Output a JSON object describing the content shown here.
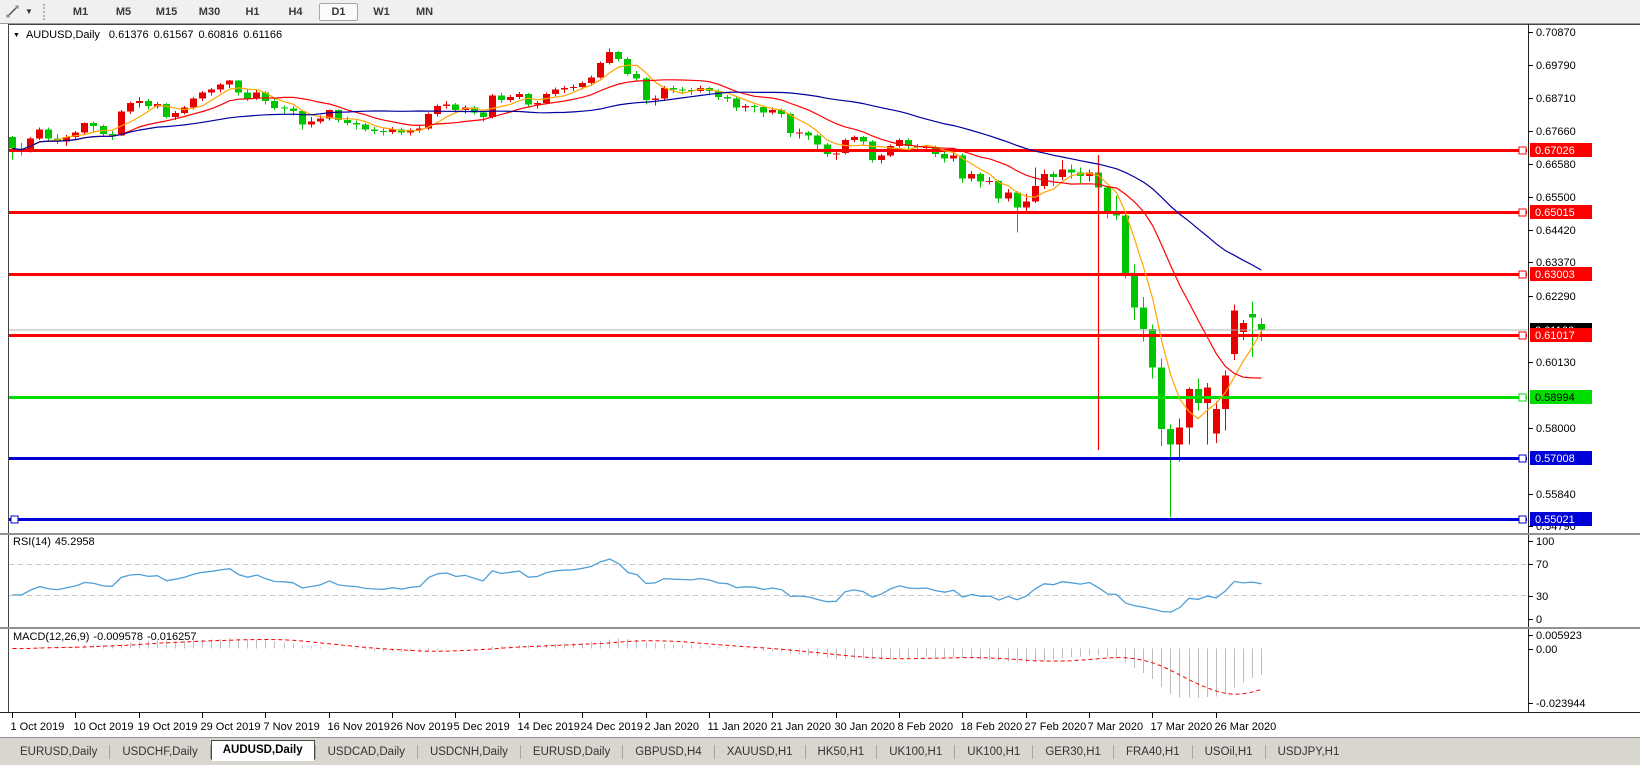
{
  "toolbar": {
    "timeframes": [
      "M1",
      "M5",
      "M15",
      "M30",
      "H1",
      "H4",
      "D1",
      "W1",
      "MN"
    ],
    "active_timeframe": "D1"
  },
  "chart": {
    "title": {
      "symbol": "AUDUSD,Daily",
      "open": "0.61376",
      "high": "0.61567",
      "low": "0.60816",
      "close": "0.61166"
    },
    "price_axis": {
      "labels": [
        "0.70870",
        "0.69790",
        "0.68710",
        "0.67660",
        "0.66580",
        "0.65500",
        "0.64420",
        "0.63370",
        "0.62290",
        "0.60130",
        "0.58000",
        "0.55840",
        "0.54790"
      ]
    },
    "hlines": [
      {
        "price": 0.67026,
        "label": "0.67026",
        "color": "#ff0000",
        "text_color": "#ffffff"
      },
      {
        "price": 0.65015,
        "label": "0.65015",
        "color": "#ff0000",
        "text_color": "#ffffff"
      },
      {
        "price": 0.63003,
        "label": "0.63003",
        "color": "#ff0000",
        "text_color": "#ffffff"
      },
      {
        "price": 0.61017,
        "label": "0.61017",
        "color": "#ff0000",
        "text_color": "#ffffff"
      },
      {
        "price": 0.58994,
        "label": "0.58994",
        "color": "#00dd00",
        "text_color": "#000000"
      },
      {
        "price": 0.57008,
        "label": "0.57008",
        "color": "#0000d8",
        "text_color": "#ffffff"
      },
      {
        "price": 0.55021,
        "label": "0.55021",
        "color": "#0000d8",
        "text_color": "#ffffff",
        "left_handle": true
      }
    ],
    "current_price": {
      "value": 0.61166,
      "label": "0.61166",
      "line_color": "#b0b0b0",
      "label_bg": "#000000",
      "text_color": "#ffffff"
    }
  },
  "chart_data": {
    "type": "candlestick",
    "symbol": "AUDUSD",
    "timeframe": "Daily",
    "title": "AUDUSD,Daily",
    "ylim": [
      0.546042,
      0.710908
    ],
    "last_ohlc": {
      "open": 0.61376,
      "high": 0.61567,
      "low": 0.60816,
      "close": 0.61166
    },
    "x_axis_dates": [
      "1 Oct 2019",
      "10 Oct 2019",
      "19 Oct 2019",
      "29 Oct 2019",
      "7 Nov 2019",
      "16 Nov 2019",
      "26 Nov 2019",
      "5 Dec 2019",
      "14 Dec 2019",
      "24 Dec 2019",
      "2 Jan 2020",
      "11 Jan 2020",
      "21 Jan 2020",
      "30 Jan 2020",
      "8 Feb 2020",
      "18 Feb 2020",
      "27 Feb 2020",
      "7 Mar 2020",
      "17 Mar 2020",
      "26 Mar 2020"
    ],
    "date_tick_step": 7,
    "colors": {
      "up": "#e60000",
      "down": "#00c400",
      "wick_up": "#e60000",
      "wick_down": "#00c400"
    },
    "moving_averages": [
      {
        "name": "MA-fast",
        "period": 5,
        "color": "#ffa500"
      },
      {
        "name": "MA-mid",
        "period": 13,
        "color": "#ff0000"
      },
      {
        "name": "MA-slow",
        "period": 34,
        "color": "#0000a0"
      }
    ],
    "annotations": {
      "vertical_segment": {
        "candle_index": 120,
        "price_from": 0.6686,
        "price_to": 0.5727,
        "color": "#ff0000"
      }
    },
    "candles": [
      [
        0.6745,
        0.6748,
        0.6672,
        0.6707
      ],
      [
        0.6707,
        0.6725,
        0.6685,
        0.67
      ],
      [
        0.67,
        0.6745,
        0.6695,
        0.674
      ],
      [
        0.674,
        0.6775,
        0.6735,
        0.677
      ],
      [
        0.677,
        0.6775,
        0.673,
        0.674
      ],
      [
        0.674,
        0.6755,
        0.6722,
        0.673
      ],
      [
        0.673,
        0.6752,
        0.6715,
        0.6745
      ],
      [
        0.6745,
        0.6765,
        0.6735,
        0.676
      ],
      [
        0.676,
        0.6792,
        0.6755,
        0.679
      ],
      [
        0.679,
        0.6795,
        0.6762,
        0.678
      ],
      [
        0.678,
        0.6785,
        0.6745,
        0.6755
      ],
      [
        0.6755,
        0.6765,
        0.6735,
        0.675
      ],
      [
        0.675,
        0.6832,
        0.6748,
        0.6828
      ],
      [
        0.6828,
        0.686,
        0.682,
        0.6855
      ],
      [
        0.6855,
        0.6875,
        0.684,
        0.6862
      ],
      [
        0.6862,
        0.6868,
        0.6835,
        0.6845
      ],
      [
        0.6845,
        0.6858,
        0.6838,
        0.6852
      ],
      [
        0.6852,
        0.6855,
        0.6805,
        0.681
      ],
      [
        0.681,
        0.683,
        0.68,
        0.6823
      ],
      [
        0.6823,
        0.6845,
        0.6818,
        0.684
      ],
      [
        0.684,
        0.6875,
        0.6835,
        0.687
      ],
      [
        0.687,
        0.6895,
        0.6862,
        0.689
      ],
      [
        0.689,
        0.6905,
        0.688,
        0.69
      ],
      [
        0.69,
        0.692,
        0.689,
        0.6915
      ],
      [
        0.6915,
        0.693,
        0.6905,
        0.6928
      ],
      [
        0.6928,
        0.693,
        0.688,
        0.689
      ],
      [
        0.689,
        0.69,
        0.6862,
        0.687
      ],
      [
        0.687,
        0.6898,
        0.6865,
        0.689
      ],
      [
        0.689,
        0.6895,
        0.685,
        0.6862
      ],
      [
        0.6862,
        0.687,
        0.6832,
        0.684
      ],
      [
        0.684,
        0.6848,
        0.682,
        0.6838
      ],
      [
        0.6838,
        0.6845,
        0.6815,
        0.683
      ],
      [
        0.683,
        0.6832,
        0.677,
        0.6785
      ],
      [
        0.6785,
        0.681,
        0.6775,
        0.6795
      ],
      [
        0.6795,
        0.6815,
        0.6788,
        0.6805
      ],
      [
        0.6805,
        0.6835,
        0.6798,
        0.6832
      ],
      [
        0.6832,
        0.6835,
        0.6792,
        0.68
      ],
      [
        0.68,
        0.6812,
        0.6782,
        0.679
      ],
      [
        0.679,
        0.6798,
        0.677,
        0.6785
      ],
      [
        0.6785,
        0.679,
        0.6762,
        0.677
      ],
      [
        0.677,
        0.6778,
        0.6755,
        0.6765
      ],
      [
        0.6765,
        0.6772,
        0.675,
        0.6762
      ],
      [
        0.6762,
        0.6778,
        0.6755,
        0.677
      ],
      [
        0.677,
        0.6775,
        0.6752,
        0.676
      ],
      [
        0.676,
        0.6772,
        0.675,
        0.6768
      ],
      [
        0.6768,
        0.6782,
        0.676,
        0.6772
      ],
      [
        0.6772,
        0.6825,
        0.6768,
        0.682
      ],
      [
        0.682,
        0.685,
        0.6812,
        0.6845
      ],
      [
        0.6845,
        0.6862,
        0.6838,
        0.685
      ],
      [
        0.685,
        0.6855,
        0.6825,
        0.6832
      ],
      [
        0.6832,
        0.6848,
        0.6822,
        0.684
      ],
      [
        0.684,
        0.6845,
        0.6818,
        0.6825
      ],
      [
        0.6825,
        0.6832,
        0.6795,
        0.681
      ],
      [
        0.681,
        0.6885,
        0.6805,
        0.688
      ],
      [
        0.688,
        0.689,
        0.6855,
        0.6865
      ],
      [
        0.6865,
        0.6882,
        0.6858,
        0.6875
      ],
      [
        0.6875,
        0.6892,
        0.6868,
        0.6885
      ],
      [
        0.6885,
        0.6888,
        0.684,
        0.685
      ],
      [
        0.685,
        0.6862,
        0.6838,
        0.6855
      ],
      [
        0.6855,
        0.689,
        0.685,
        0.6885
      ],
      [
        0.6885,
        0.6906,
        0.6878,
        0.69
      ],
      [
        0.69,
        0.691,
        0.6888,
        0.6905
      ],
      [
        0.6905,
        0.6915,
        0.6895,
        0.6908
      ],
      [
        0.6908,
        0.6925,
        0.69,
        0.692
      ],
      [
        0.692,
        0.6945,
        0.6915,
        0.6938
      ],
      [
        0.6938,
        0.699,
        0.6935,
        0.6985
      ],
      [
        0.6985,
        0.7032,
        0.698,
        0.7021
      ],
      [
        0.7021,
        0.7025,
        0.699,
        0.6998
      ],
      [
        0.6998,
        0.7005,
        0.6945,
        0.695
      ],
      [
        0.695,
        0.696,
        0.6925,
        0.6935
      ],
      [
        0.6935,
        0.694,
        0.685,
        0.6865
      ],
      [
        0.6865,
        0.688,
        0.6848,
        0.687
      ],
      [
        0.687,
        0.691,
        0.6862,
        0.6905
      ],
      [
        0.6905,
        0.6912,
        0.6888,
        0.69
      ],
      [
        0.69,
        0.6908,
        0.6885,
        0.6898
      ],
      [
        0.6898,
        0.6905,
        0.6882,
        0.6895
      ],
      [
        0.6895,
        0.6912,
        0.689,
        0.6905
      ],
      [
        0.6905,
        0.6908,
        0.688,
        0.6895
      ],
      [
        0.6895,
        0.69,
        0.6865,
        0.6875
      ],
      [
        0.6875,
        0.6882,
        0.6858,
        0.687
      ],
      [
        0.687,
        0.6875,
        0.683,
        0.684
      ],
      [
        0.684,
        0.6852,
        0.6828,
        0.6845
      ],
      [
        0.6845,
        0.685,
        0.6825,
        0.6842
      ],
      [
        0.6842,
        0.6848,
        0.681,
        0.6825
      ],
      [
        0.6825,
        0.684,
        0.6818,
        0.6832
      ],
      [
        0.6832,
        0.6838,
        0.6808,
        0.682
      ],
      [
        0.682,
        0.6825,
        0.6745,
        0.6758
      ],
      [
        0.6758,
        0.6772,
        0.674,
        0.676
      ],
      [
        0.676,
        0.6765,
        0.6735,
        0.675
      ],
      [
        0.675,
        0.6755,
        0.67,
        0.672
      ],
      [
        0.672,
        0.6725,
        0.668,
        0.669
      ],
      [
        0.669,
        0.6705,
        0.667,
        0.6692
      ],
      [
        0.6692,
        0.674,
        0.6688,
        0.6735
      ],
      [
        0.6735,
        0.675,
        0.6728,
        0.6745
      ],
      [
        0.6745,
        0.6748,
        0.672,
        0.673
      ],
      [
        0.673,
        0.6735,
        0.6662,
        0.667
      ],
      [
        0.667,
        0.669,
        0.6658,
        0.6685
      ],
      [
        0.6685,
        0.672,
        0.668,
        0.6715
      ],
      [
        0.6715,
        0.674,
        0.671,
        0.6735
      ],
      [
        0.6735,
        0.674,
        0.6705,
        0.6715
      ],
      [
        0.6715,
        0.6722,
        0.6698,
        0.671
      ],
      [
        0.671,
        0.6718,
        0.67,
        0.6713
      ],
      [
        0.6713,
        0.6717,
        0.668,
        0.669
      ],
      [
        0.669,
        0.67,
        0.6662,
        0.6675
      ],
      [
        0.6675,
        0.6695,
        0.6665,
        0.6685
      ],
      [
        0.6685,
        0.6692,
        0.6595,
        0.661
      ],
      [
        0.661,
        0.6635,
        0.66,
        0.6625
      ],
      [
        0.6625,
        0.663,
        0.658,
        0.66
      ],
      [
        0.66,
        0.6615,
        0.659,
        0.6601
      ],
      [
        0.6601,
        0.6605,
        0.653,
        0.6545
      ],
      [
        0.6545,
        0.6575,
        0.6535,
        0.6565
      ],
      [
        0.6565,
        0.657,
        0.6435,
        0.6515
      ],
      [
        0.6515,
        0.656,
        0.65,
        0.6535
      ],
      [
        0.6535,
        0.6645,
        0.653,
        0.6585
      ],
      [
        0.6585,
        0.664,
        0.6575,
        0.6625
      ],
      [
        0.6625,
        0.6632,
        0.6585,
        0.6615
      ],
      [
        0.6615,
        0.667,
        0.6605,
        0.664
      ],
      [
        0.664,
        0.6655,
        0.661,
        0.663
      ],
      [
        0.663,
        0.6645,
        0.6595,
        0.6618
      ],
      [
        0.6618,
        0.664,
        0.66,
        0.663
      ],
      [
        0.663,
        0.666,
        0.6313,
        0.658
      ],
      [
        0.658,
        0.6585,
        0.648,
        0.65
      ],
      [
        0.65,
        0.6555,
        0.6475,
        0.649
      ],
      [
        0.649,
        0.65,
        0.6285,
        0.6295
      ],
      [
        0.6295,
        0.633,
        0.615,
        0.619
      ],
      [
        0.619,
        0.6225,
        0.608,
        0.612
      ],
      [
        0.612,
        0.6135,
        0.596,
        0.5995
      ],
      [
        0.5995,
        0.6025,
        0.574,
        0.5795
      ],
      [
        0.5795,
        0.581,
        0.551,
        0.5745
      ],
      [
        0.5745,
        0.583,
        0.569,
        0.58
      ],
      [
        0.58,
        0.593,
        0.5745,
        0.5925
      ],
      [
        0.5925,
        0.596,
        0.5855,
        0.588
      ],
      [
        0.588,
        0.5945,
        0.5745,
        0.593
      ],
      [
        0.578,
        0.5885,
        0.575,
        0.586
      ],
      [
        0.586,
        0.5985,
        0.579,
        0.597
      ],
      [
        0.604,
        0.62,
        0.602,
        0.618
      ],
      [
        0.611,
        0.615,
        0.6085,
        0.614
      ],
      [
        0.617,
        0.621,
        0.603,
        0.6158
      ],
      [
        0.61376,
        0.61567,
        0.60816,
        0.61166
      ]
    ]
  },
  "indicators": {
    "rsi": {
      "name": "RSI(14)",
      "value": "45.2958",
      "color": "#4f9fd8",
      "axis_labels": [
        "100",
        "70",
        "30",
        "0"
      ],
      "dashed_levels": [
        70,
        30
      ],
      "range": [
        0,
        100
      ]
    },
    "macd": {
      "name": "MACD(12,26,9)",
      "main_value": "-0.009578",
      "signal_value": "-0.016257",
      "axis_labels": [
        "0.005923",
        "0.00",
        "-0.023944"
      ],
      "hist_color": "#bdbdbd",
      "signal_color": "#ff0000"
    }
  },
  "tabs": {
    "active_index": 2,
    "items": [
      "EURUSD,Daily",
      "USDCHF,Daily",
      "AUDUSD,Daily",
      "USDCAD,Daily",
      "USDCNH,Daily",
      "EURUSD,Daily",
      "GBPUSD,H4",
      "XAUUSD,H1",
      "HK50,H1",
      "UK100,H1",
      "UK100,H1",
      "GER30,H1",
      "FRA40,H1",
      "USOil,H1",
      "USDJPY,H1"
    ]
  }
}
